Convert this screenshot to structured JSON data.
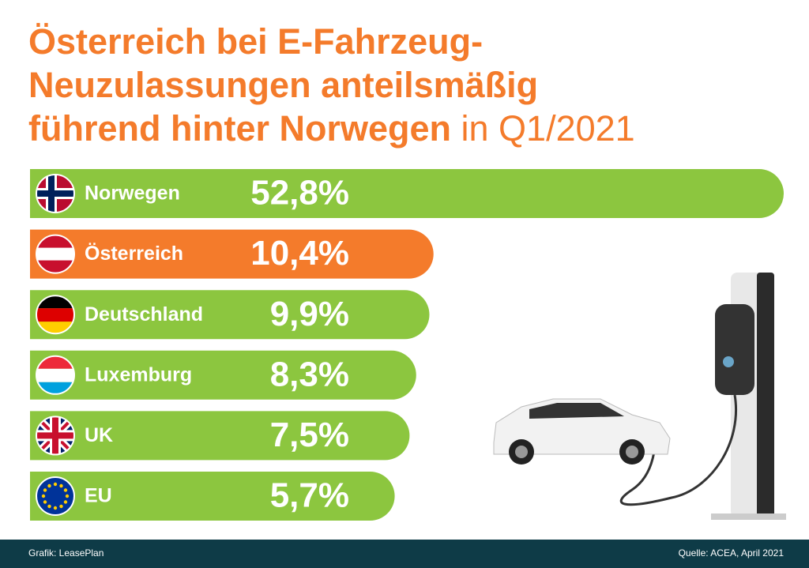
{
  "chart_data": {
    "type": "bar",
    "title": [
      "Österreich bei E-Fahrzeug-",
      "Neuzulassungen anteilsmäßig",
      "führend hinter Norwegen"
    ],
    "title_suffix": "in Q1/2021",
    "categories": [
      "Norwegen",
      "Österreich",
      "Deutschland",
      "Luxemburg",
      "UK",
      "EU"
    ],
    "values": [
      52.8,
      10.4,
      9.9,
      8.3,
      7.5,
      5.7
    ],
    "value_labels": [
      "52,8%",
      "10,4%",
      "9,9%",
      "8,3%",
      "7,5%",
      "5,7%"
    ],
    "colors": [
      "#8cc63f",
      "#f47b2b",
      "#8cc63f",
      "#8cc63f",
      "#8cc63f",
      "#8cc63f"
    ],
    "footer_left": "Grafik: LeasePlan",
    "footer_right": "Quelle: ACEA, April 2021"
  }
}
